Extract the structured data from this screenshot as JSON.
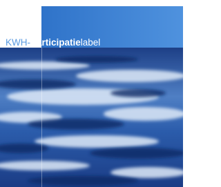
{
  "title": {
    "prefix": "KWH-",
    "bold": "Participatie",
    "suffix": "label"
  }
}
